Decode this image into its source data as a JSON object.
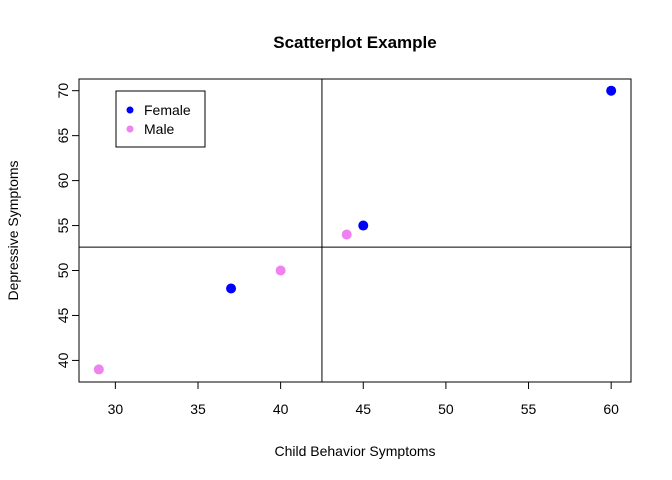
{
  "chart_data": {
    "type": "scatter",
    "title": "Scatterplot Example",
    "xlabel": "Child Behavior Symptoms",
    "ylabel": "Depressive Symptoms",
    "xlim": [
      27.8,
      61.2
    ],
    "ylim": [
      37.6,
      71.3
    ],
    "x_ticks": [
      30,
      35,
      40,
      45,
      50,
      55,
      60
    ],
    "y_ticks": [
      40,
      45,
      50,
      55,
      60,
      65,
      70
    ],
    "reference_lines": {
      "vertical_x": 42.5,
      "horizontal_y": 52.6
    },
    "legend_position": "top-left",
    "series": [
      {
        "name": "Female",
        "color": "#0000ff",
        "points": [
          {
            "x": 37,
            "y": 48
          },
          {
            "x": 45,
            "y": 55
          },
          {
            "x": 60,
            "y": 70
          }
        ]
      },
      {
        "name": "Male",
        "color": "#ee82ee",
        "points": [
          {
            "x": 29,
            "y": 39
          },
          {
            "x": 40,
            "y": 50
          },
          {
            "x": 44,
            "y": 54
          }
        ]
      }
    ]
  }
}
